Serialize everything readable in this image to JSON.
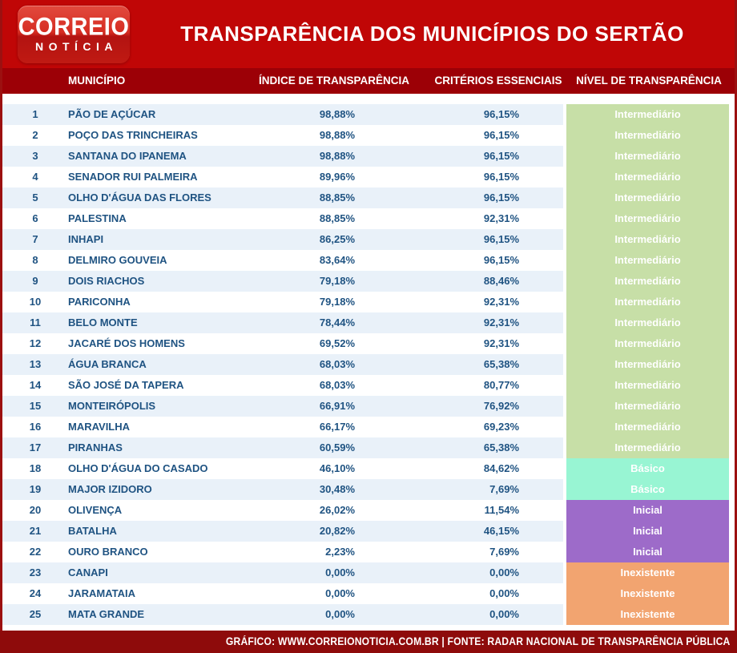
{
  "brand": {
    "logo_line1": "CORREIO",
    "logo_line2": "NOTÍCIA"
  },
  "chart_data": {
    "type": "table",
    "title": "TRANSPARÊNCIA DOS MUNICÍPIOS DO SERTÃO",
    "columns": [
      "MUNICÍPIO",
      "ÍNDICE DE TRANSPARÊNCIA",
      "CRITÉRIOS ESSENCIAIS",
      "NÍVEL DE TRANSPARÊNCIA"
    ],
    "rows": [
      {
        "rank": "1",
        "municipio": "PÃO DE AÇÚCAR",
        "indice": "98,88%",
        "criterios": "96,15%",
        "nivel": "Intermediário"
      },
      {
        "rank": "2",
        "municipio": "POÇO DAS TRINCHEIRAS",
        "indice": "98,88%",
        "criterios": "96,15%",
        "nivel": "Intermediário"
      },
      {
        "rank": "3",
        "municipio": "SANTANA DO IPANEMA",
        "indice": "98,88%",
        "criterios": "96,15%",
        "nivel": "Intermediário"
      },
      {
        "rank": "4",
        "municipio": "SENADOR RUI PALMEIRA",
        "indice": "89,96%",
        "criterios": "96,15%",
        "nivel": "Intermediário"
      },
      {
        "rank": "5",
        "municipio": "OLHO D'ÁGUA DAS FLORES",
        "indice": "88,85%",
        "criterios": "96,15%",
        "nivel": "Intermediário"
      },
      {
        "rank": "6",
        "municipio": "PALESTINA",
        "indice": "88,85%",
        "criterios": "92,31%",
        "nivel": "Intermediário"
      },
      {
        "rank": "7",
        "municipio": "INHAPI",
        "indice": "86,25%",
        "criterios": "96,15%",
        "nivel": "Intermediário"
      },
      {
        "rank": "8",
        "municipio": "DELMIRO GOUVEIA",
        "indice": "83,64%",
        "criterios": "96,15%",
        "nivel": "Intermediário"
      },
      {
        "rank": "9",
        "municipio": "DOIS RIACHOS",
        "indice": "79,18%",
        "criterios": "88,46%",
        "nivel": "Intermediário"
      },
      {
        "rank": "10",
        "municipio": "PARICONHA",
        "indice": "79,18%",
        "criterios": "92,31%",
        "nivel": "Intermediário"
      },
      {
        "rank": "11",
        "municipio": "BELO MONTE",
        "indice": "78,44%",
        "criterios": "92,31%",
        "nivel": "Intermediário"
      },
      {
        "rank": "12",
        "municipio": "JACARÉ DOS HOMENS",
        "indice": "69,52%",
        "criterios": "92,31%",
        "nivel": "Intermediário"
      },
      {
        "rank": "13",
        "municipio": "ÁGUA BRANCA",
        "indice": "68,03%",
        "criterios": "65,38%",
        "nivel": "Intermediário"
      },
      {
        "rank": "14",
        "municipio": "SÃO JOSÉ DA TAPERA",
        "indice": "68,03%",
        "criterios": "80,77%",
        "nivel": "Intermediário"
      },
      {
        "rank": "15",
        "municipio": "MONTEIRÓPOLIS",
        "indice": "66,91%",
        "criterios": "76,92%",
        "nivel": "Intermediário"
      },
      {
        "rank": "16",
        "municipio": "MARAVILHA",
        "indice": "66,17%",
        "criterios": "69,23%",
        "nivel": "Intermediário"
      },
      {
        "rank": "17",
        "municipio": "PIRANHAS",
        "indice": "60,59%",
        "criterios": "65,38%",
        "nivel": "Intermediário"
      },
      {
        "rank": "18",
        "municipio": "OLHO D'ÁGUA DO CASADO",
        "indice": "46,10%",
        "criterios": "84,62%",
        "nivel": "Básico"
      },
      {
        "rank": "19",
        "municipio": "MAJOR IZIDORO",
        "indice": "30,48%",
        "criterios": "7,69%",
        "nivel": "Básico"
      },
      {
        "rank": "20",
        "municipio": "OLIVENÇA",
        "indice": "26,02%",
        "criterios": "11,54%",
        "nivel": "Inicial"
      },
      {
        "rank": "21",
        "municipio": "BATALHA",
        "indice": "20,82%",
        "criterios": "46,15%",
        "nivel": "Inicial"
      },
      {
        "rank": "22",
        "municipio": "OURO BRANCO",
        "indice": "2,23%",
        "criterios": "7,69%",
        "nivel": "Inicial"
      },
      {
        "rank": "23",
        "municipio": "CANAPI",
        "indice": "0,00%",
        "criterios": "0,00%",
        "nivel": "Inexistente"
      },
      {
        "rank": "24",
        "municipio": "JARAMATAIA",
        "indice": "0,00%",
        "criterios": "0,00%",
        "nivel": "Inexistente"
      },
      {
        "rank": "25",
        "municipio": "MATA GRANDE",
        "indice": "0,00%",
        "criterios": "0,00%",
        "nivel": "Inexistente"
      }
    ],
    "legend_position": "none",
    "grid": false
  },
  "level_colors": {
    "Intermediário": "#c7dfa7",
    "Básico": "#98f5d3",
    "Inicial": "#9d6bc9",
    "Inexistente": "#f2a470"
  },
  "colors": {
    "masthead_red": "#c00606",
    "header_bar_red": "#9c0006",
    "footer_red": "#8e0b0b",
    "row_stripe_blue": "#e9f1f9",
    "text_blue": "#1f5382"
  },
  "footer": {
    "text": "GRÁFICO: WWW.CORREIONOTICIA.COM.BR   |   FONTE: RADAR NACIONAL DE TRANSPARÊNCIA PÚBLICA"
  }
}
